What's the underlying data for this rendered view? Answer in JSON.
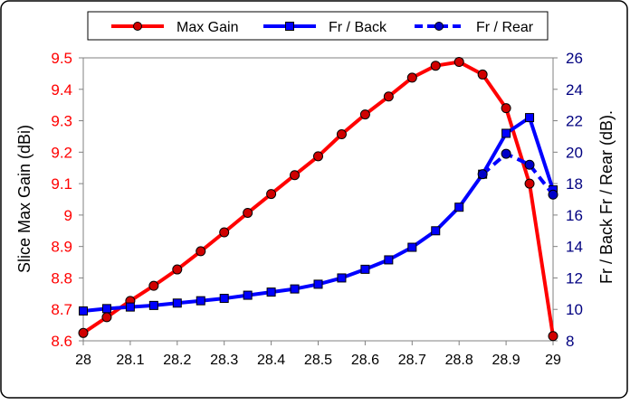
{
  "chart_data": {
    "type": "line",
    "title": "",
    "xlabel": "",
    "ylabel_left": "Slice Max Gain (dBi)",
    "ylabel_right": "Fr / Back   Fr / Rear (dB).",
    "x": [
      28,
      28.05,
      28.1,
      28.15,
      28.2,
      28.25,
      28.3,
      28.35,
      28.4,
      28.45,
      28.5,
      28.55,
      28.6,
      28.65,
      28.7,
      28.75,
      28.8,
      28.85,
      28.9,
      28.95,
      29
    ],
    "x_ticks": [
      "28",
      "28.1",
      "28.2",
      "28.3",
      "28.4",
      "28.5",
      "28.6",
      "28.7",
      "28.8",
      "28.9",
      "29"
    ],
    "xlim": [
      28,
      29
    ],
    "ylim_left": [
      8.6,
      9.5
    ],
    "yticks_left": [
      "8.6",
      "8.7",
      "8.8",
      "8.9",
      "9",
      "9.1",
      "9.2",
      "9.3",
      "9.4",
      "9.5"
    ],
    "ylim_right": [
      8,
      26
    ],
    "yticks_right": [
      "8",
      "10",
      "12",
      "14",
      "16",
      "18",
      "20",
      "22",
      "24",
      "26"
    ],
    "grid": false,
    "legend_position": "top",
    "series": [
      {
        "name": "Max Gain",
        "axis": "left",
        "color": "#ff0000",
        "marker": "circle",
        "dash": false,
        "values": [
          8.625,
          8.675,
          8.727,
          8.775,
          8.827,
          8.885,
          8.945,
          9.007,
          9.067,
          9.127,
          9.187,
          9.257,
          9.32,
          9.377,
          9.437,
          9.475,
          9.487,
          9.447,
          9.34,
          9.1,
          8.615
        ],
        "x": [
          28,
          28.05,
          28.1,
          28.15,
          28.2,
          28.25,
          28.3,
          28.35,
          28.4,
          28.45,
          28.5,
          28.55,
          28.6,
          28.65,
          28.7,
          28.75,
          28.8,
          28.85,
          28.9,
          28.95,
          29
        ]
      },
      {
        "name": "Fr / Back",
        "axis": "right",
        "color": "#0000ff",
        "marker": "square",
        "dash": false,
        "values": [
          9.9,
          10.05,
          10.15,
          10.25,
          10.4,
          10.55,
          10.7,
          10.9,
          11.1,
          11.3,
          11.6,
          12.0,
          12.55,
          13.15,
          13.95,
          15.0,
          16.5,
          18.6,
          21.2,
          22.2,
          17.6
        ],
        "x": [
          28,
          28.05,
          28.1,
          28.15,
          28.2,
          28.25,
          28.3,
          28.35,
          28.4,
          28.45,
          28.5,
          28.55,
          28.6,
          28.65,
          28.7,
          28.75,
          28.8,
          28.85,
          28.9,
          28.95,
          29
        ]
      },
      {
        "name": "Fr / Rear",
        "axis": "right",
        "color": "#0000ff",
        "marker": "circle",
        "dash": true,
        "values": [
          18.6,
          19.9,
          19.2,
          17.3
        ],
        "x": [
          28.85,
          28.9,
          28.95,
          29
        ]
      }
    ]
  }
}
